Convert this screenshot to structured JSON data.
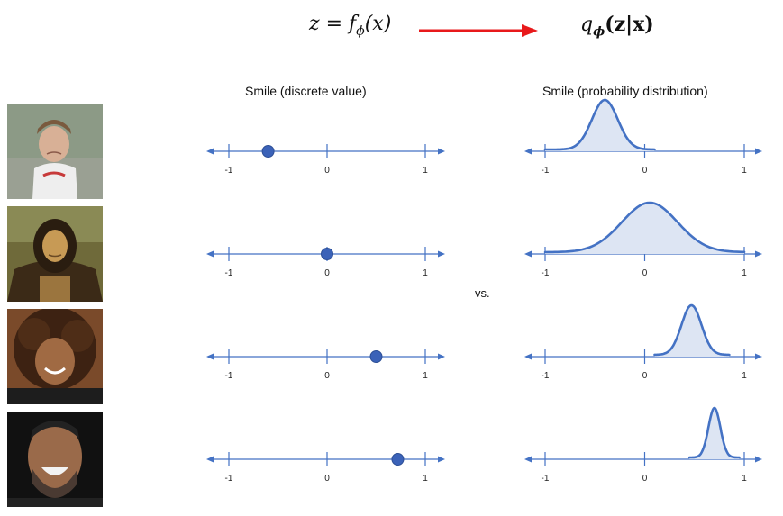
{
  "formula": {
    "left": "z = fϕ(x)",
    "left_parts": {
      "var": "z",
      "eq": " = ",
      "f": "f",
      "sub": "ϕ",
      "arg": "(x)"
    },
    "right_parts": {
      "q": "q",
      "sub": "ϕ",
      "arg": "(z|x)"
    },
    "arrow_color": "#e8191b"
  },
  "titles": {
    "left": "Smile (discrete value)",
    "right": "Smile (probability distribution)"
  },
  "separator": "vs.",
  "axis": {
    "ticks": [
      -1,
      0,
      1
    ],
    "labels": [
      "-1",
      "0",
      "1"
    ],
    "color": "#4472c4"
  },
  "rows": [
    {
      "photo": "boy-frowning-photo",
      "point": -0.6,
      "mean": -0.4,
      "std": 0.13,
      "range": [
        -1,
        0.1
      ]
    },
    {
      "photo": "mona-lisa-photo",
      "point": 0.0,
      "mean": 0.05,
      "std": 0.28,
      "range": [
        -1,
        1
      ]
    },
    {
      "photo": "girl-smiling-photo",
      "point": 0.5,
      "mean": 0.47,
      "std": 0.1,
      "range": [
        0.1,
        0.85
      ]
    },
    {
      "photo": "man-laughing-photo",
      "point": 0.72,
      "mean": 0.7,
      "std": 0.06,
      "range": [
        0.45,
        0.95
      ]
    }
  ],
  "colors": {
    "accent": "#4472c4",
    "dot": "#3b62b8",
    "fill": "#dde5f3"
  }
}
